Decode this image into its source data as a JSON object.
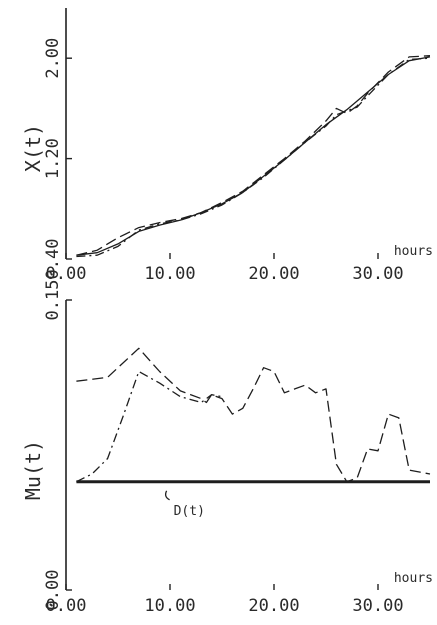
{
  "chart_data": [
    {
      "type": "line",
      "ylabel": "X(t)",
      "xlabel": "hours",
      "xlim": [
        0,
        35
      ],
      "ylim": [
        0.4,
        2.4
      ],
      "x_ticks": [
        0,
        10,
        20,
        30
      ],
      "x_tick_labels": [
        "0.00",
        "10.00",
        "20.00",
        "30.00"
      ],
      "y_ticks": [
        0.4,
        1.2,
        2.0
      ],
      "y_tick_labels": [
        "0.40",
        "1.20",
        "2.00"
      ],
      "grid": false,
      "series": [
        {
          "style": "solid",
          "x": [
            1,
            3,
            5,
            7,
            9,
            11,
            13,
            15,
            17,
            19,
            21,
            23,
            25,
            27,
            29,
            31,
            33,
            35
          ],
          "y": [
            0.43,
            0.45,
            0.52,
            0.62,
            0.67,
            0.71,
            0.77,
            0.84,
            0.93,
            1.06,
            1.19,
            1.33,
            1.47,
            1.59,
            1.73,
            1.87,
            1.98,
            2.01
          ]
        },
        {
          "style": "dashed",
          "x": [
            1,
            3,
            5,
            7,
            9,
            11,
            13,
            15,
            17,
            19,
            21,
            23,
            25,
            26,
            27,
            28,
            29,
            31,
            33,
            35
          ],
          "y": [
            0.43,
            0.47,
            0.57,
            0.65,
            0.69,
            0.72,
            0.77,
            0.85,
            0.94,
            1.07,
            1.2,
            1.34,
            1.5,
            1.6,
            1.56,
            1.62,
            1.72,
            1.89,
            2.01,
            2.02
          ]
        },
        {
          "style": "dash-dot",
          "x": [
            1,
            3,
            5,
            7,
            9,
            11,
            13,
            15,
            17,
            19,
            21,
            23,
            25,
            26,
            27,
            28,
            29,
            31,
            33,
            35
          ],
          "y": [
            0.42,
            0.43,
            0.5,
            0.63,
            0.68,
            0.71,
            0.76,
            0.83,
            0.93,
            1.05,
            1.19,
            1.33,
            1.46,
            1.55,
            1.58,
            1.61,
            1.7,
            1.87,
            1.99,
            2.0
          ]
        }
      ]
    },
    {
      "type": "line",
      "ylabel": "Mu(t)",
      "xlabel": "hours",
      "xlim": [
        0,
        35
      ],
      "ylim": [
        0,
        0.15
      ],
      "x_ticks": [
        0,
        10,
        20,
        30
      ],
      "x_tick_labels": [
        "0.00",
        "10.00",
        "20.00",
        "30.00"
      ],
      "y_ticks": [
        0,
        0.15
      ],
      "y_tick_labels": [
        "0.00",
        "0.15"
      ],
      "grid": false,
      "annotations": [
        {
          "text": "D(t)",
          "x": 11.5,
          "y": 0.042
        }
      ],
      "series": [
        {
          "style": "dashed",
          "x": [
            1,
            4,
            7,
            9,
            11,
            13,
            13.5,
            14,
            15,
            16,
            17,
            18,
            19,
            20,
            21,
            22,
            23,
            24,
            25,
            26,
            27,
            28,
            29,
            30,
            31,
            32,
            33,
            35
          ],
          "y": [
            0.108,
            0.11,
            0.125,
            0.113,
            0.103,
            0.099,
            0.097,
            0.101,
            0.099,
            0.091,
            0.094,
            0.104,
            0.115,
            0.113,
            0.102,
            0.104,
            0.106,
            0.102,
            0.104,
            0.065,
            0.056,
            0.058,
            0.073,
            0.072,
            0.091,
            0.089,
            0.062,
            0.06
          ]
        },
        {
          "style": "dash-dot",
          "x": [
            1,
            2.5,
            4,
            5.5,
            7,
            9,
            11,
            13,
            14,
            15
          ],
          "y": [
            0.056,
            0.06,
            0.068,
            0.09,
            0.113,
            0.107,
            0.1,
            0.097,
            0.101,
            0.1
          ]
        },
        {
          "style": "solid-bold",
          "x": [
            1,
            35
          ],
          "y": [
            0.056,
            0.056
          ]
        }
      ]
    }
  ]
}
